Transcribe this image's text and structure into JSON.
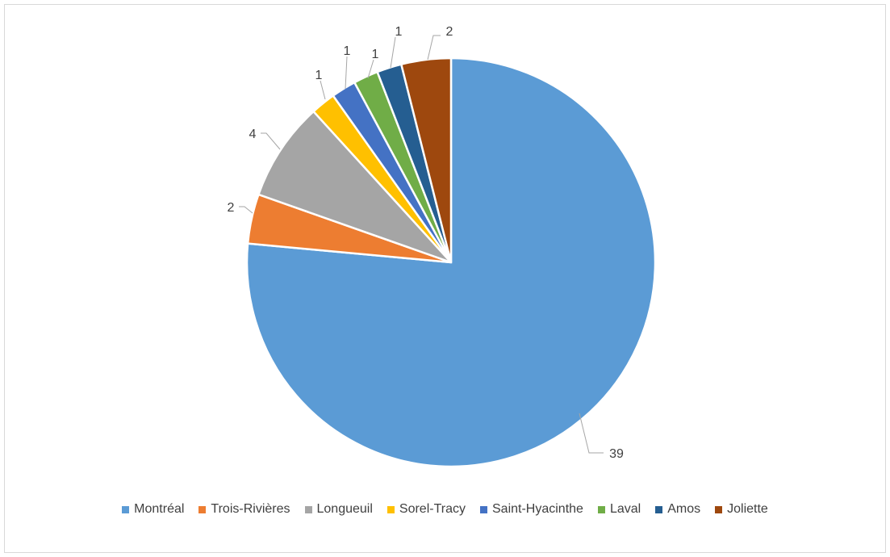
{
  "chart_data": {
    "type": "pie",
    "title": "",
    "start_angle_deg": 0,
    "direction": "clockwise",
    "legend_position": "bottom",
    "slices": [
      {
        "label": "Montréal",
        "value": 39,
        "color": "#5b9bd5"
      },
      {
        "label": "Trois-Rivières",
        "value": 2,
        "color": "#ed7d31"
      },
      {
        "label": "Longueuil",
        "value": 4,
        "color": "#a5a5a5"
      },
      {
        "label": "Sorel-Tracy",
        "value": 1,
        "color": "#ffc000"
      },
      {
        "label": "Saint-Hyacinthe",
        "value": 1,
        "color": "#4472c4"
      },
      {
        "label": "Laval",
        "value": 1,
        "color": "#70ad47"
      },
      {
        "label": "Amos",
        "value": 1,
        "color": "#255e91"
      },
      {
        "label": "Joliette",
        "value": 2,
        "color": "#9e480e"
      }
    ]
  }
}
